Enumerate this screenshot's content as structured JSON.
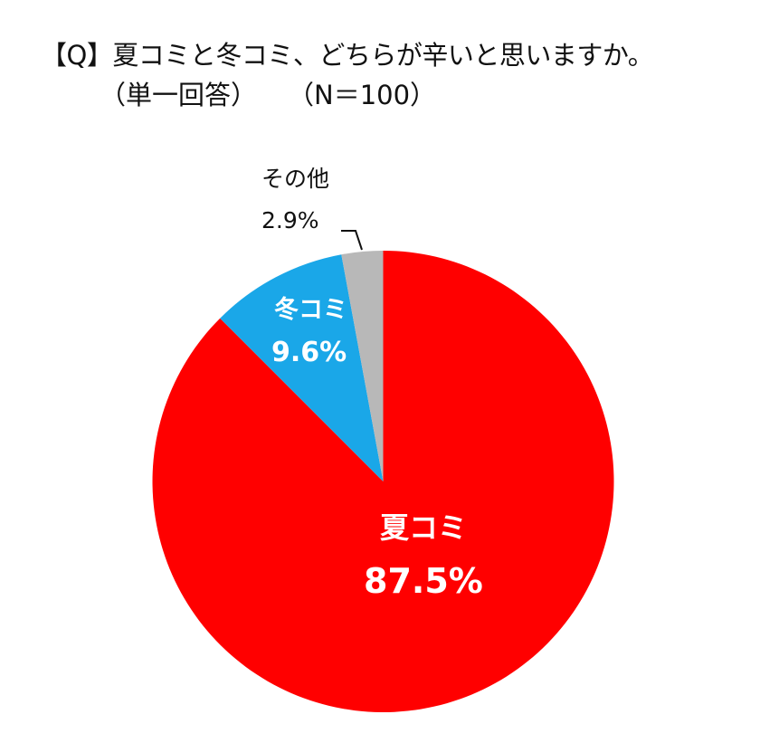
{
  "header": {
    "title_line1": "【Q】夏コミと冬コミ、どちらが辛いと思いますか。",
    "title_line2a": "（単一回答）",
    "title_line2b": "（N＝100）"
  },
  "labels": {
    "summer": {
      "name": "夏コミ",
      "value": "87.5%"
    },
    "winter": {
      "name": "冬コミ",
      "value": "9.6%"
    },
    "other": {
      "name": "その他",
      "value": "2.9%"
    }
  },
  "colors": {
    "summer": "#FF0000",
    "winter": "#1AA7E8",
    "other": "#B8B8B8"
  },
  "chart_data": {
    "type": "pie",
    "title": "【Q】夏コミと冬コミ、どちらが辛いと思いますか。（単一回答）（N＝100）",
    "categories": [
      "夏コミ",
      "冬コミ",
      "その他"
    ],
    "values": [
      87.5,
      9.6,
      2.9
    ],
    "unit": "%",
    "n": 100,
    "start_angle": "12 o'clock, clockwise",
    "colors": [
      "#FF0000",
      "#1AA7E8",
      "#B8B8B8"
    ],
    "legend": "none (data labels on slices)"
  }
}
